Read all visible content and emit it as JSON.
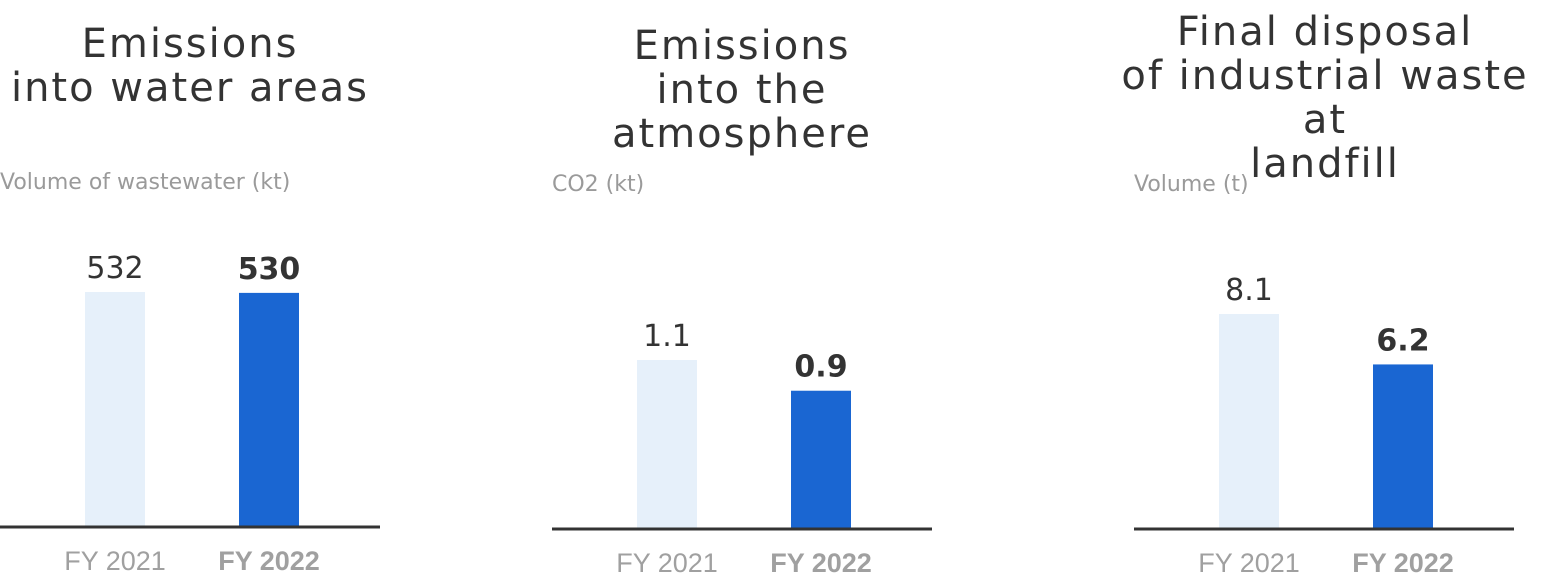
{
  "chart_data": [
    {
      "type": "bar",
      "title": "Emissions\ninto water areas",
      "ylabel": "Volume of wastewater (kt)",
      "categories": [
        "FY 2021",
        "FY 2022"
      ],
      "values": [
        532,
        530
      ],
      "value_labels": [
        "532",
        "530"
      ],
      "grid": false
    },
    {
      "type": "bar",
      "title": "Emissions\ninto the atmosphere",
      "ylabel": "CO2 (kt)",
      "categories": [
        "FY 2021",
        "FY 2022"
      ],
      "values": [
        1.1,
        0.9
      ],
      "value_labels": [
        "1.1",
        "0.9"
      ],
      "grid": false
    },
    {
      "type": "bar",
      "title": "Final disposal\nof industrial waste at\nlandfill",
      "ylabel": "Volume (t)",
      "categories": [
        "FY 2021",
        "FY 2022"
      ],
      "values": [
        8.1,
        6.2
      ],
      "value_labels": [
        "8.1",
        "6.2"
      ],
      "grid": false
    }
  ],
  "colors": {
    "previous_year_bar": "#e6f0fa",
    "current_year_bar": "#1a66d2",
    "axis": "#333333"
  }
}
